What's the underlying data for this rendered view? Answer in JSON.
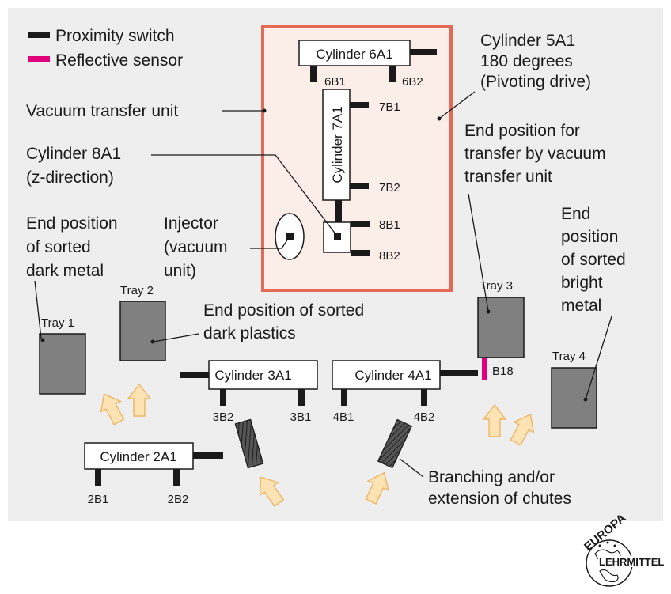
{
  "legend": {
    "proximity_switch": "Proximity switch",
    "reflective_sensor": "Reflective sensor"
  },
  "colors": {
    "background": "#eeeeee",
    "frame_border": "#e26a57",
    "frame_fill": "#fbeee8",
    "proximity_switch": "#1a1a1a",
    "reflective_sensor": "#e0007a",
    "tray": "#808080",
    "arrow_fill": "#fde3b4",
    "arrow_stroke": "#eeb566"
  },
  "cylinders": {
    "c6a1": "Cylinder 6A1",
    "c7a1": "Cylinder 7A1",
    "c3a1": "Cylinder 3A1",
    "c4a1": "Cylinder 4A1",
    "c2a1": "Cylinder 2A1"
  },
  "switches": {
    "s6b1": "6B1",
    "s6b2": "6B2",
    "s7b1": "7B1",
    "s7b2": "7B2",
    "s8b1": "8B1",
    "s8b2": "8B2",
    "s3b1": "3B1",
    "s3b2": "3B2",
    "s4b1": "4B1",
    "s4b2": "4B2",
    "s2b1": "2B1",
    "s2b2": "2B2",
    "b18": "B18"
  },
  "trays": {
    "t1": "Tray 1",
    "t2": "Tray 2",
    "t3": "Tray 3",
    "t4": "Tray 4"
  },
  "annotations": {
    "cyl5a1": [
      "Cylinder 5A1",
      "180 degrees",
      "(Pivoting drive)"
    ],
    "vacuum_transfer_unit": "Vacuum transfer unit",
    "cyl8a1": [
      "Cylinder 8A1",
      "(z-direction)"
    ],
    "end_transfer": [
      "End position for",
      "transfer by vacuum",
      "transfer unit"
    ],
    "injector": [
      "Injector",
      "(vacuum",
      "unit)"
    ],
    "dark_metal": [
      "End position",
      "of sorted",
      "dark metal"
    ],
    "bright_metal": [
      "End",
      "position",
      "of sorted",
      "bright",
      "metal"
    ],
    "dark_plastics": [
      "End position of sorted",
      "dark plastics"
    ],
    "branching": [
      "Branching and/or",
      "extension of chutes"
    ]
  },
  "logo": {
    "top": "EUROPA",
    "bottom": "LEHRMITTEL"
  }
}
